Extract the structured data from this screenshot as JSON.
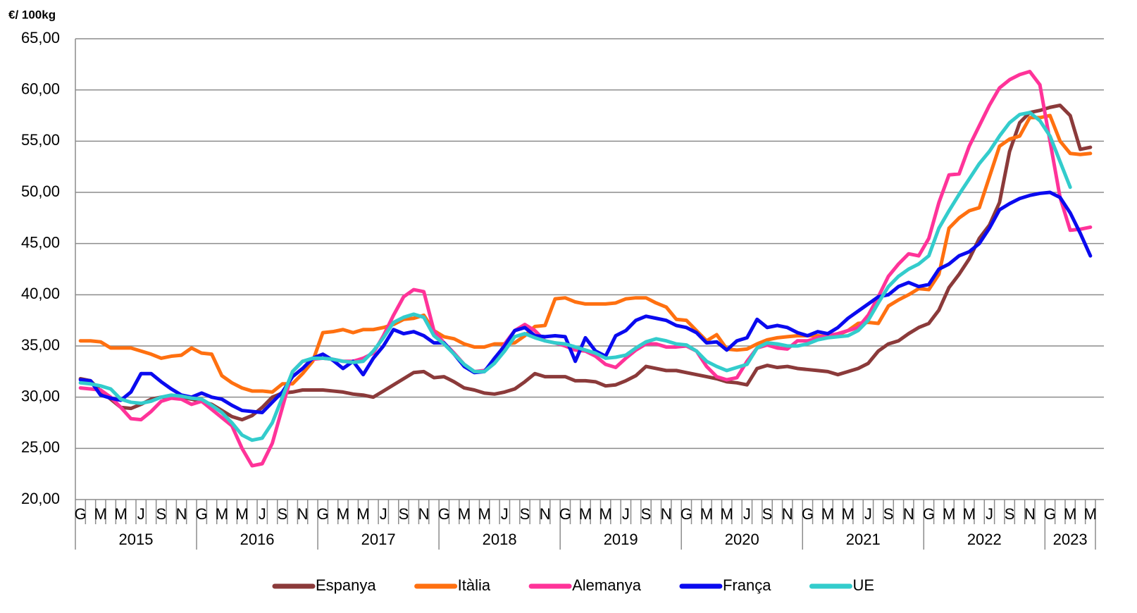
{
  "chart_data": {
    "type": "line",
    "y_axis_label": "€/ 100kg",
    "categories": [
      "G",
      null,
      "M",
      null,
      "M",
      null,
      "J",
      null,
      "S",
      null,
      "N",
      null,
      "G",
      null,
      "M",
      null,
      "M",
      null,
      "J",
      null,
      "S",
      null,
      "N",
      null,
      "G",
      null,
      "M",
      null,
      "M",
      null,
      "J",
      null,
      "S",
      null,
      "N",
      null,
      "G",
      null,
      "M",
      null,
      "M",
      null,
      "J",
      null,
      "S",
      null,
      "N",
      null,
      "G",
      null,
      "M",
      null,
      "M",
      null,
      "J",
      null,
      "S",
      null,
      "N",
      null,
      "G",
      null,
      "M",
      null,
      "M",
      null,
      "J",
      null,
      "S",
      null,
      "N",
      null,
      "G",
      null,
      "M",
      null,
      "M",
      null,
      "J",
      null,
      "S",
      null,
      "N",
      null,
      "G",
      null,
      "M",
      null,
      "M",
      null,
      "J",
      null,
      "S",
      null,
      "N",
      null,
      "G",
      null,
      "M",
      null,
      "M"
    ],
    "years": [
      "2015",
      "2016",
      "2017",
      "2018",
      "2019",
      "2020",
      "2021",
      "2022",
      "2023"
    ],
    "series": [
      {
        "name": "Espanya",
        "color": "#8b3a3a",
        "values": [
          31.8,
          31.6,
          30.6,
          29.8,
          29.0,
          28.9,
          29.3,
          29.8,
          30.0,
          30.0,
          30.0,
          29.8,
          29.6,
          29.3,
          28.7,
          28.1,
          27.8,
          28.2,
          29.0,
          30.0,
          30.4,
          30.5,
          30.7,
          30.7,
          30.7,
          30.6,
          30.5,
          30.3,
          30.2,
          30.0,
          30.6,
          31.2,
          31.8,
          32.4,
          32.5,
          31.9,
          32.0,
          31.5,
          30.9,
          30.7,
          30.4,
          30.3,
          30.5,
          30.8,
          31.5,
          32.3,
          32.0,
          32.0,
          32.0,
          31.6,
          31.6,
          31.5,
          31.1,
          31.2,
          31.6,
          32.1,
          33.0,
          32.8,
          32.6,
          32.6,
          32.4,
          32.2,
          32.0,
          31.8,
          31.5,
          31.4,
          31.2,
          32.8,
          33.1,
          32.9,
          33.0,
          32.8,
          32.7,
          32.6,
          32.5,
          32.2,
          32.5,
          32.8,
          33.3,
          34.5,
          35.2,
          35.5,
          36.2,
          36.8,
          37.2,
          38.5,
          40.7,
          42.0,
          43.5,
          45.5,
          46.8,
          49.0,
          54.0,
          56.8,
          57.8,
          58.0,
          58.3,
          58.5,
          57.5,
          54.2,
          54.4
        ]
      },
      {
        "name": "Itàlia",
        "color": "#ff7010",
        "values": [
          35.5,
          35.5,
          35.4,
          34.8,
          34.8,
          34.8,
          34.5,
          34.2,
          33.8,
          34.0,
          34.1,
          34.8,
          34.3,
          34.2,
          32.1,
          31.4,
          30.9,
          30.6,
          30.6,
          30.5,
          31.3,
          31.3,
          32.3,
          33.5,
          36.3,
          36.4,
          36.6,
          36.3,
          36.6,
          36.6,
          36.8,
          37.1,
          37.6,
          37.7,
          38.0,
          36.5,
          35.9,
          35.7,
          35.2,
          34.9,
          34.9,
          35.2,
          35.2,
          35.3,
          36.0,
          36.9,
          37.0,
          39.6,
          39.7,
          39.3,
          39.1,
          39.1,
          39.1,
          39.2,
          39.6,
          39.7,
          39.7,
          39.2,
          38.8,
          37.6,
          37.5,
          36.5,
          35.5,
          36.1,
          34.7,
          34.6,
          34.7,
          35.2,
          35.6,
          35.8,
          35.9,
          36.0,
          36.0,
          36.0,
          35.9,
          36.1,
          36.5,
          37.2,
          37.3,
          37.2,
          38.9,
          39.5,
          40.0,
          40.6,
          40.5,
          42.0,
          46.5,
          47.5,
          48.2,
          48.5,
          51.5,
          54.5,
          55.2,
          55.5,
          57.3,
          57.3,
          57.5,
          55.0,
          53.8,
          53.7,
          53.8
        ]
      },
      {
        "name": "Alemanya",
        "color": "#ff3399",
        "values": [
          30.9,
          30.8,
          30.7,
          30.0,
          29.0,
          27.9,
          27.8,
          28.6,
          29.6,
          29.9,
          29.8,
          29.3,
          29.6,
          28.8,
          28.0,
          27.2,
          25.0,
          23.3,
          23.5,
          25.5,
          29.0,
          32.5,
          33.5,
          33.7,
          33.8,
          33.7,
          33.5,
          33.5,
          33.8,
          34.3,
          36.0,
          38.0,
          39.8,
          40.5,
          40.3,
          36.5,
          35.3,
          34.3,
          33.2,
          32.5,
          32.6,
          33.4,
          35.2,
          36.5,
          37.1,
          36.5,
          35.5,
          35.3,
          35.0,
          34.6,
          34.5,
          34.0,
          33.2,
          32.9,
          33.8,
          34.6,
          35.2,
          35.2,
          34.9,
          34.9,
          35.0,
          34.5,
          33.0,
          32.0,
          31.7,
          31.9,
          33.5,
          34.8,
          35.1,
          34.8,
          34.7,
          35.5,
          35.5,
          35.8,
          36.0,
          36.2,
          36.5,
          36.8,
          38.0,
          39.8,
          41.8,
          43.0,
          44.0,
          43.8,
          45.5,
          49.0,
          51.7,
          51.8,
          54.5,
          56.5,
          58.5,
          60.2,
          61.0,
          61.5,
          61.8,
          60.5,
          55.0,
          49.5,
          46.3,
          46.4,
          46.6
        ]
      },
      {
        "name": "França",
        "color": "#0a0aef",
        "values": [
          31.7,
          31.6,
          30.2,
          29.9,
          29.7,
          30.5,
          32.3,
          32.3,
          31.5,
          30.8,
          30.2,
          30.0,
          30.4,
          30.0,
          29.8,
          29.2,
          28.7,
          28.6,
          28.5,
          29.5,
          30.5,
          32.0,
          32.8,
          33.8,
          34.2,
          33.6,
          32.8,
          33.5,
          32.2,
          33.8,
          35.0,
          36.6,
          36.2,
          36.4,
          36.0,
          35.3,
          35.3,
          34.2,
          33.0,
          32.4,
          32.5,
          33.8,
          35.0,
          36.5,
          36.8,
          36.0,
          35.9,
          36.0,
          35.9,
          33.5,
          35.8,
          34.5,
          34.0,
          36.0,
          36.5,
          37.5,
          37.9,
          37.7,
          37.5,
          37.0,
          36.8,
          36.3,
          35.3,
          35.4,
          34.6,
          35.5,
          35.8,
          37.6,
          36.8,
          37.0,
          36.8,
          36.3,
          36.0,
          36.4,
          36.2,
          36.8,
          37.7,
          38.4,
          39.1,
          39.8,
          40.0,
          40.8,
          41.2,
          40.8,
          41.0,
          42.5,
          43.0,
          43.8,
          44.2,
          45.0,
          46.5,
          48.3,
          48.9,
          49.4,
          49.7,
          49.9,
          50.0,
          49.5,
          48.0,
          46.0,
          43.8
        ]
      },
      {
        "name": "UE",
        "color": "#33cccc",
        "values": [
          31.4,
          31.3,
          31.1,
          30.8,
          29.8,
          29.5,
          29.4,
          29.6,
          30.0,
          30.2,
          30.1,
          29.9,
          29.8,
          29.2,
          28.5,
          27.5,
          26.3,
          25.8,
          26.0,
          27.5,
          30.0,
          32.5,
          33.5,
          33.8,
          33.8,
          33.7,
          33.5,
          33.4,
          33.5,
          34.5,
          35.8,
          37.3,
          37.8,
          38.1,
          37.8,
          36.0,
          35.2,
          34.2,
          33.2,
          32.5,
          32.5,
          33.3,
          34.5,
          35.9,
          36.2,
          35.8,
          35.5,
          35.3,
          35.2,
          34.9,
          34.6,
          34.3,
          33.8,
          33.9,
          34.1,
          34.8,
          35.4,
          35.7,
          35.5,
          35.2,
          35.1,
          34.5,
          33.5,
          33.0,
          32.6,
          32.9,
          33.2,
          34.8,
          35.3,
          35.2,
          35.0,
          35.0,
          35.2,
          35.6,
          35.8,
          35.9,
          36.0,
          36.5,
          37.5,
          39.2,
          40.8,
          41.8,
          42.5,
          43.0,
          43.8,
          46.5,
          48.2,
          49.8,
          51.3,
          52.8,
          54.0,
          55.5,
          56.8,
          57.6,
          57.8,
          57.0,
          55.5,
          53.0,
          50.5,
          null,
          null
        ]
      }
    ],
    "ylim": [
      20,
      65
    ],
    "yticks": [
      {
        "value": 20,
        "label": "20,00"
      },
      {
        "value": 25,
        "label": "25,00"
      },
      {
        "value": 30,
        "label": "30,00"
      },
      {
        "value": 35,
        "label": "35,00"
      },
      {
        "value": 40,
        "label": "40,00"
      },
      {
        "value": 45,
        "label": "45,00"
      },
      {
        "value": 50,
        "label": "50,00"
      },
      {
        "value": 55,
        "label": "55,00"
      },
      {
        "value": 60,
        "label": "60,00"
      },
      {
        "value": 65,
        "label": "65,00"
      }
    ],
    "grid": true,
    "legend": "bottom"
  }
}
